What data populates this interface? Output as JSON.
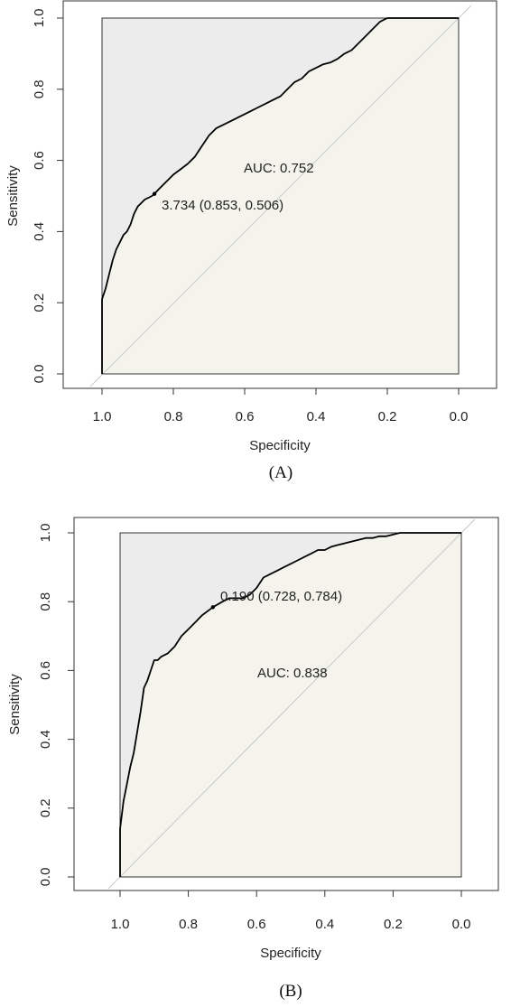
{
  "chart_data": [
    {
      "type": "line",
      "panel_label": "(A)",
      "xlabel": "Specificity",
      "ylabel": "Sensitivity",
      "x_reversed": true,
      "xlim": [
        1.0,
        0.0
      ],
      "ylim": [
        0.0,
        1.0
      ],
      "x_ticks": [
        "1.0",
        "0.8",
        "0.6",
        "0.4",
        "0.2",
        "0.0"
      ],
      "y_ticks": [
        "0.0",
        "0.2",
        "0.4",
        "0.6",
        "0.8",
        "1.0"
      ],
      "grid": false,
      "auc_text": "AUC: 0.752",
      "threshold_text": "3.734 (0.853, 0.506)",
      "threshold_point": {
        "specificity": 0.853,
        "sensitivity": 0.506
      },
      "reference_line": "diagonal",
      "colors": {
        "curve": "#000000",
        "above_fill": "#ececec",
        "below_fill": "#f4f4ec",
        "diagonal": "#c8c8c8"
      },
      "series": [
        {
          "specificity": [
            1.0,
            1.0,
            0.99,
            0.98,
            0.97,
            0.96,
            0.95,
            0.94,
            0.93,
            0.92,
            0.91,
            0.9,
            0.89,
            0.88,
            0.87,
            0.86,
            0.853,
            0.84,
            0.82,
            0.8,
            0.78,
            0.76,
            0.74,
            0.72,
            0.7,
            0.68,
            0.66,
            0.64,
            0.62,
            0.6,
            0.58,
            0.56,
            0.54,
            0.52,
            0.5,
            0.48,
            0.46,
            0.44,
            0.42,
            0.4,
            0.38,
            0.36,
            0.34,
            0.32,
            0.3,
            0.28,
            0.26,
            0.24,
            0.22,
            0.2,
            0.18,
            0.0
          ],
          "sensitivity": [
            0.0,
            0.21,
            0.24,
            0.28,
            0.32,
            0.35,
            0.37,
            0.39,
            0.4,
            0.42,
            0.45,
            0.47,
            0.48,
            0.49,
            0.495,
            0.5,
            0.506,
            0.52,
            0.54,
            0.56,
            0.575,
            0.59,
            0.61,
            0.64,
            0.67,
            0.69,
            0.7,
            0.71,
            0.72,
            0.73,
            0.74,
            0.75,
            0.76,
            0.77,
            0.78,
            0.8,
            0.82,
            0.83,
            0.85,
            0.86,
            0.87,
            0.875,
            0.885,
            0.9,
            0.91,
            0.93,
            0.95,
            0.97,
            0.99,
            1.0,
            1.0,
            1.0
          ]
        }
      ]
    },
    {
      "type": "line",
      "panel_label": "(B)",
      "xlabel": "Specificity",
      "ylabel": "Sensitivity",
      "x_reversed": true,
      "xlim": [
        1.0,
        0.0
      ],
      "ylim": [
        0.0,
        1.0
      ],
      "x_ticks": [
        "1.0",
        "0.8",
        "0.6",
        "0.4",
        "0.2",
        "0.0"
      ],
      "y_ticks": [
        "0.0",
        "0.2",
        "0.4",
        "0.6",
        "0.8",
        "1.0"
      ],
      "grid": false,
      "auc_text": "AUC: 0.838",
      "threshold_text": "0.190 (0.728, 0.784)",
      "threshold_point": {
        "specificity": 0.728,
        "sensitivity": 0.784
      },
      "reference_line": "diagonal",
      "colors": {
        "curve": "#000000",
        "above_fill": "#ececec",
        "below_fill": "#f4f4ec",
        "diagonal": "#c8c8c8"
      },
      "series": [
        {
          "specificity": [
            1.0,
            1.0,
            0.99,
            0.98,
            0.97,
            0.96,
            0.95,
            0.94,
            0.93,
            0.92,
            0.91,
            0.9,
            0.89,
            0.88,
            0.86,
            0.84,
            0.82,
            0.8,
            0.78,
            0.76,
            0.74,
            0.728,
            0.7,
            0.68,
            0.66,
            0.64,
            0.62,
            0.6,
            0.58,
            0.56,
            0.54,
            0.52,
            0.5,
            0.48,
            0.46,
            0.44,
            0.42,
            0.4,
            0.38,
            0.36,
            0.34,
            0.32,
            0.3,
            0.28,
            0.26,
            0.24,
            0.22,
            0.2,
            0.18,
            0.0
          ],
          "sensitivity": [
            0.0,
            0.14,
            0.22,
            0.27,
            0.32,
            0.36,
            0.42,
            0.48,
            0.55,
            0.57,
            0.6,
            0.63,
            0.63,
            0.64,
            0.65,
            0.67,
            0.7,
            0.72,
            0.74,
            0.76,
            0.775,
            0.784,
            0.8,
            0.81,
            0.81,
            0.81,
            0.82,
            0.84,
            0.87,
            0.88,
            0.89,
            0.9,
            0.91,
            0.92,
            0.93,
            0.94,
            0.95,
            0.95,
            0.96,
            0.965,
            0.97,
            0.975,
            0.98,
            0.985,
            0.985,
            0.99,
            0.99,
            0.995,
            1.0,
            1.0
          ]
        }
      ]
    }
  ]
}
